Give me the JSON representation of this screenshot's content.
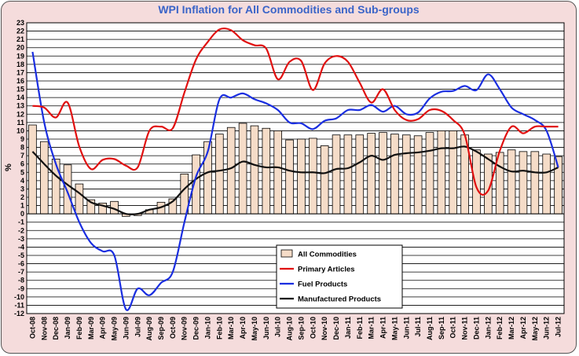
{
  "chart_data": {
    "type": "bar",
    "title": "WPI Inflation for All Commodities and Sub-groups",
    "ylabel": "%",
    "xlabel": "",
    "ylim": [
      -12,
      23
    ],
    "ytick_step": 1,
    "grid": true,
    "legend_position": "bottom-center",
    "categories": [
      "Oct-08",
      "Nov-08",
      "Dec-08",
      "Jan-09",
      "Feb-09",
      "Mar-09",
      "Apr-09",
      "May-09",
      "Jun-09",
      "Jul-09",
      "Aug-09",
      "Sep-09",
      "Oct-09",
      "Nov-09",
      "Dec-09",
      "Jan-10",
      "Feb-10",
      "Mar-10",
      "Apr-10",
      "May-10",
      "Jun-10",
      "Jul-10",
      "Aug-10",
      "Sep-10",
      "Oct-10",
      "Nov-10",
      "Dec-10",
      "Jan-11",
      "Feb-11",
      "Mar-11",
      "Apr-11",
      "May-11",
      "Jun-11",
      "Jul-11",
      "Aug-11",
      "Sep-11",
      "Oct-11",
      "Nov-11",
      "Dec-11",
      "Jan-12",
      "Feb-12",
      "Mar-12",
      "Apr-12",
      "May-12",
      "Jun-12",
      "Jul-12"
    ],
    "xtick_labels": [
      "Oct-08",
      "Nov-08",
      "Dec-08",
      "Jan-09",
      "Feb-09",
      "Mar-09",
      "Apr-09",
      "May-09",
      "Jun-09",
      "Jul-09",
      "Aug-09",
      "Sep-09",
      "Oct-09",
      "Nov-09",
      "Dec-09",
      "Jan-10",
      "Feb-10",
      "Mar-10",
      "Apr-10",
      "May-10",
      "Jun-10",
      "Jul-10",
      "Aug-10",
      "Sep-10",
      "Oct-10",
      "Nov-10",
      "Dec-10",
      "Jan-11",
      "Feb-11",
      "Mar-11",
      "Apr-11",
      "May-11",
      "Jun-11",
      "Jul-11",
      "Aug-11",
      "Sep-11",
      "Oct-11",
      "Nov-11",
      "Dec-11",
      "Jan-12",
      "Feb-12",
      "Mar-12",
      "Apr-12",
      "May-12",
      "Jun-12",
      "Jul-12"
    ],
    "series": [
      {
        "name": "All Commodities",
        "kind": "bar",
        "color": "#f5dcc8",
        "values": [
          10.7,
          8.7,
          6.6,
          5.9,
          3.6,
          1.7,
          1.3,
          1.5,
          -0.3,
          -0.2,
          0.5,
          1.4,
          1.8,
          4.8,
          7.1,
          8.7,
          9.6,
          10.4,
          10.9,
          10.6,
          10.3,
          10.0,
          8.9,
          9.0,
          9.1,
          8.2,
          9.5,
          9.5,
          9.5,
          9.7,
          9.8,
          9.6,
          9.5,
          9.4,
          9.8,
          10.0,
          10.0,
          9.5,
          7.7,
          7.2,
          7.4,
          7.7,
          7.5,
          7.5,
          7.2,
          6.9
        ]
      },
      {
        "name": "Primary Articles",
        "kind": "line",
        "color": "#e01010",
        "values": [
          13.0,
          12.8,
          11.6,
          13.4,
          8.1,
          5.4,
          6.5,
          6.6,
          5.8,
          5.6,
          10.0,
          10.5,
          10.3,
          14.6,
          18.6,
          20.7,
          22.2,
          22.1,
          20.9,
          20.3,
          19.9,
          16.2,
          18.3,
          18.4,
          14.9,
          18.1,
          19.0,
          18.3,
          15.8,
          13.4,
          15.0,
          12.5,
          11.3,
          11.4,
          12.5,
          12.4,
          11.3,
          9.5,
          3.2,
          2.8,
          7.6,
          10.5,
          9.7,
          10.5,
          10.5,
          10.5
        ]
      },
      {
        "name": "Fuel Products",
        "kind": "line",
        "color": "#1a2ee0",
        "values": [
          19.5,
          11.0,
          6.0,
          2.6,
          -1.0,
          -3.5,
          -4.5,
          -5.0,
          -11.5,
          -9.0,
          -9.8,
          -8.3,
          -7.0,
          -1.0,
          4.5,
          7.5,
          13.8,
          14.0,
          14.5,
          13.8,
          13.3,
          12.5,
          11.0,
          10.9,
          10.2,
          11.2,
          11.5,
          12.5,
          12.5,
          13.1,
          12.3,
          13.0,
          12.0,
          12.2,
          13.9,
          14.7,
          14.8,
          15.4,
          14.9,
          16.8,
          15.0,
          12.8,
          12.0,
          11.3,
          10.0,
          5.6
        ]
      },
      {
        "name": "Manufactured Products",
        "kind": "line",
        "color": "#111111",
        "values": [
          7.5,
          6.0,
          4.6,
          3.5,
          2.5,
          1.4,
          1.0,
          0.6,
          0.0,
          0.0,
          0.5,
          0.8,
          1.5,
          3.0,
          4.2,
          5.0,
          5.2,
          5.5,
          6.3,
          5.9,
          5.6,
          5.6,
          5.2,
          5.0,
          5.0,
          4.9,
          5.4,
          5.5,
          6.2,
          7.0,
          6.5,
          7.1,
          7.3,
          7.4,
          7.6,
          7.9,
          7.9,
          8.1,
          7.5,
          6.6,
          5.7,
          5.1,
          5.2,
          5.0,
          5.0,
          5.6
        ]
      }
    ]
  }
}
